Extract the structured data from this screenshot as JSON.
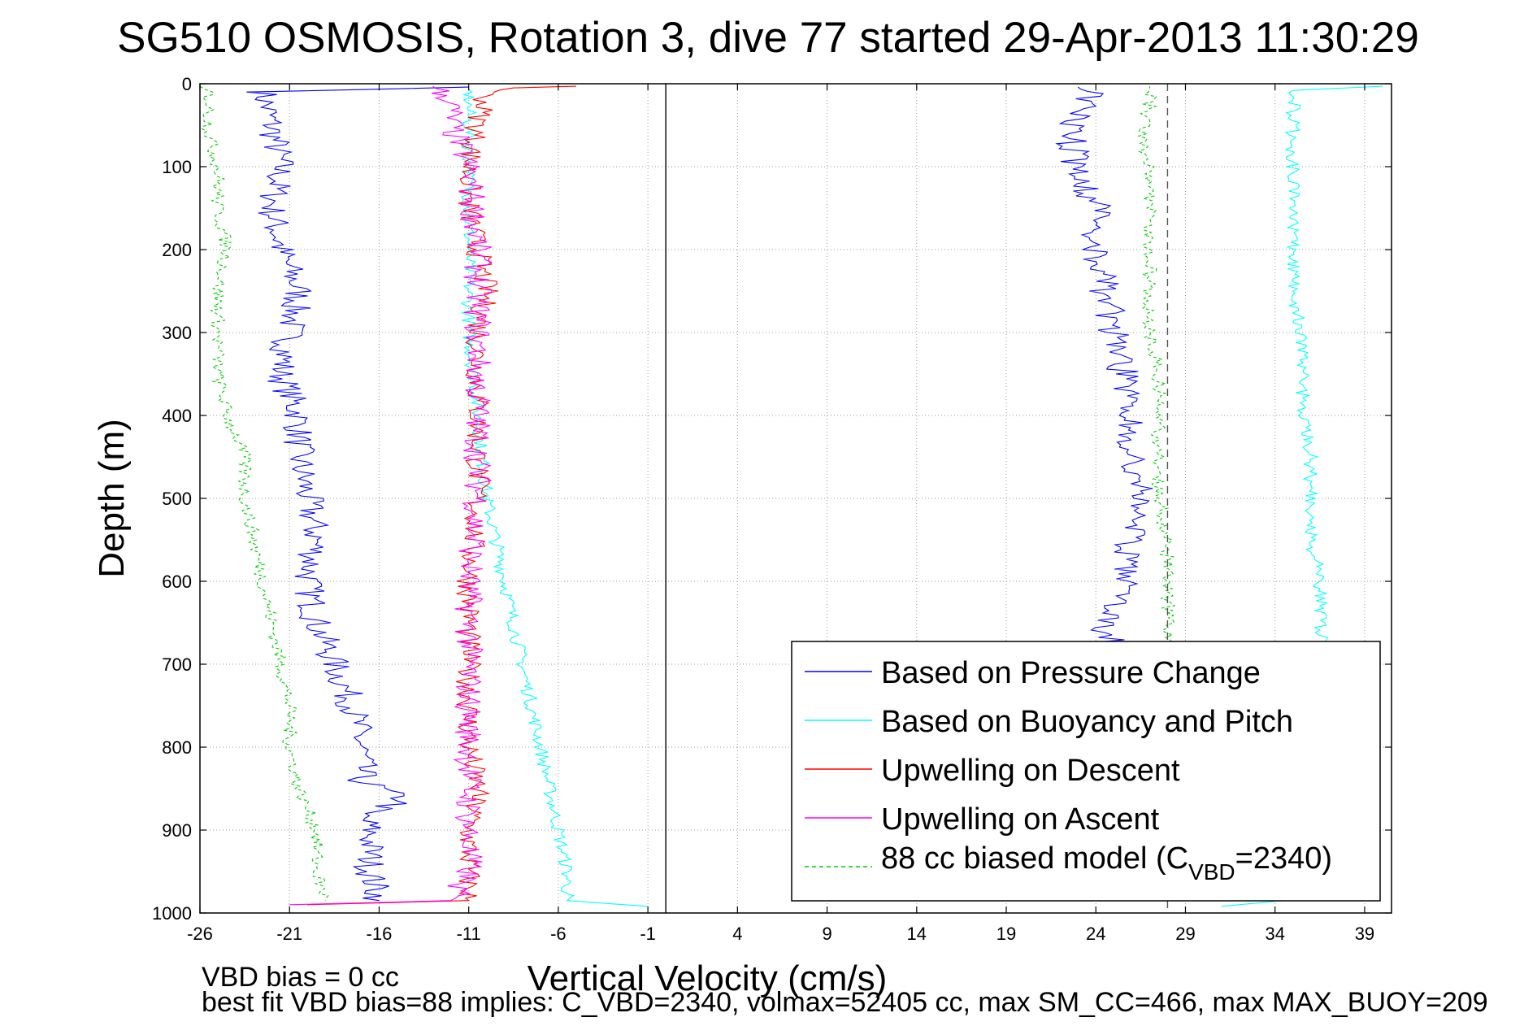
{
  "chart_data": {
    "type": "line",
    "title": "SG510 OSMOSIS, Rotation 3, dive 77 started 29-Apr-2013 11:30:29",
    "xlabel": "Vertical Velocity (cm/s)",
    "ylabel": "Depth (m)",
    "xlim": [
      -26,
      40.5
    ],
    "ylim": [
      1000,
      0
    ],
    "y_reversed": true,
    "grid": true,
    "x_ticks": [
      -26,
      -21,
      -16,
      -11,
      -6,
      -1,
      4,
      9,
      14,
      19,
      24,
      29,
      34,
      39
    ],
    "y_ticks": [
      0,
      100,
      200,
      300,
      400,
      500,
      600,
      700,
      800,
      900,
      1000
    ],
    "reference_lines": [
      {
        "x": 0,
        "style": "solid",
        "color": "#000000"
      },
      {
        "x": 28,
        "style": "dashed",
        "color": "#555555"
      }
    ],
    "legend_location": "bottom-right",
    "series": [
      {
        "name": "Based on Pressure Change",
        "color": "#0000ff",
        "style": "solid",
        "noise": 0.9,
        "down": [
          [
            4,
            -11
          ],
          [
            10,
            -22.5
          ],
          [
            50,
            -22
          ],
          [
            100,
            -21.5
          ],
          [
            150,
            -22
          ],
          [
            200,
            -21.5
          ],
          [
            250,
            -20.5
          ],
          [
            300,
            -21
          ],
          [
            350,
            -21.5
          ],
          [
            400,
            -20.5
          ],
          [
            450,
            -20.5
          ],
          [
            500,
            -20
          ],
          [
            550,
            -19.5
          ],
          [
            600,
            -20
          ],
          [
            650,
            -19.5
          ],
          [
            700,
            -18.5
          ],
          [
            750,
            -17.5
          ],
          [
            800,
            -17
          ],
          [
            840,
            -17
          ],
          [
            865,
            -14.5
          ],
          [
            880,
            -17
          ],
          [
            900,
            -16.5
          ],
          [
            950,
            -16.5
          ],
          [
            985,
            -16
          ]
        ],
        "up": [
          [
            985,
            25
          ],
          [
            950,
            25.5
          ],
          [
            900,
            25
          ],
          [
            850,
            25.5
          ],
          [
            800,
            25
          ],
          [
            750,
            25
          ],
          [
            700,
            25
          ],
          [
            650,
            24.5
          ],
          [
            600,
            25.5
          ],
          [
            550,
            26
          ],
          [
            500,
            26.5
          ],
          [
            450,
            26
          ],
          [
            400,
            26
          ],
          [
            350,
            25.5
          ],
          [
            300,
            25
          ],
          [
            250,
            24.5
          ],
          [
            200,
            24
          ],
          [
            150,
            24
          ],
          [
            100,
            23
          ],
          [
            60,
            22.5
          ],
          [
            30,
            23.5
          ],
          [
            12,
            23.5
          ],
          [
            4,
            23
          ]
        ]
      },
      {
        "name": "Based on Buoyancy and Pitch",
        "color": "#00ffff",
        "style": "solid",
        "noise": 0.4,
        "down": [
          [
            4,
            -11
          ],
          [
            50,
            -11
          ],
          [
            100,
            -11
          ],
          [
            200,
            -11
          ],
          [
            250,
            -11
          ],
          [
            300,
            -11
          ],
          [
            400,
            -10.5
          ],
          [
            500,
            -10
          ],
          [
            550,
            -9.5
          ],
          [
            600,
            -9
          ],
          [
            650,
            -8.5
          ],
          [
            700,
            -8
          ],
          [
            750,
            -7.5
          ],
          [
            800,
            -7
          ],
          [
            850,
            -6.5
          ],
          [
            900,
            -6
          ],
          [
            950,
            -5.5
          ],
          [
            985,
            -5.5
          ],
          [
            992,
            -1
          ]
        ],
        "up": [
          [
            992,
            31
          ],
          [
            980,
            37
          ],
          [
            950,
            37
          ],
          [
            900,
            37
          ],
          [
            800,
            37
          ],
          [
            700,
            37
          ],
          [
            650,
            36.5
          ],
          [
            600,
            36.5
          ],
          [
            550,
            36
          ],
          [
            500,
            36
          ],
          [
            450,
            36
          ],
          [
            400,
            35.5
          ],
          [
            300,
            35.5
          ],
          [
            250,
            35
          ],
          [
            200,
            35
          ],
          [
            150,
            35
          ],
          [
            100,
            35
          ],
          [
            50,
            35
          ],
          [
            20,
            35
          ],
          [
            8,
            35
          ],
          [
            3,
            40
          ]
        ]
      },
      {
        "name": "Upwelling on Descent",
        "color": "#ff0000",
        "style": "solid",
        "noise": 0.7,
        "down": [
          [
            3,
            -5
          ],
          [
            5,
            -8.5
          ],
          [
            10,
            -10
          ],
          [
            50,
            -10.5
          ],
          [
            100,
            -11
          ],
          [
            150,
            -11
          ],
          [
            200,
            -10.5
          ],
          [
            250,
            -10
          ],
          [
            300,
            -10.5
          ],
          [
            400,
            -10.5
          ],
          [
            500,
            -10.5
          ],
          [
            600,
            -11
          ],
          [
            700,
            -11
          ],
          [
            800,
            -11
          ],
          [
            850,
            -10.5
          ],
          [
            900,
            -11
          ],
          [
            950,
            -11
          ],
          [
            985,
            -11
          ],
          [
            990,
            -20
          ]
        ]
      },
      {
        "name": "Upwelling on Ascent",
        "color": "#ff00ff",
        "style": "solid",
        "noise": 0.8,
        "down": [
          [
            3,
            -13
          ],
          [
            20,
            -12
          ],
          [
            50,
            -12
          ],
          [
            100,
            -11
          ],
          [
            200,
            -10.5
          ],
          [
            300,
            -10.5
          ],
          [
            400,
            -10.5
          ],
          [
            500,
            -10.5
          ],
          [
            600,
            -11
          ],
          [
            700,
            -11
          ],
          [
            800,
            -11
          ],
          [
            900,
            -11
          ],
          [
            950,
            -11
          ],
          [
            985,
            -12
          ],
          [
            990,
            -21
          ]
        ]
      },
      {
        "name": "88 cc biased model (C",
        "color": "#00cc00",
        "style": "dashed",
        "noise": 0.4,
        "down": [
          [
            3,
            -26
          ],
          [
            10,
            -25.5
          ],
          [
            40,
            -25.5
          ],
          [
            60,
            -25.5
          ],
          [
            100,
            -25
          ],
          [
            150,
            -25
          ],
          [
            200,
            -24.5
          ],
          [
            250,
            -25
          ],
          [
            300,
            -25
          ],
          [
            350,
            -25
          ],
          [
            400,
            -24.5
          ],
          [
            450,
            -23.5
          ],
          [
            500,
            -23.5
          ],
          [
            550,
            -23
          ],
          [
            600,
            -22.5
          ],
          [
            650,
            -22
          ],
          [
            700,
            -21.5
          ],
          [
            750,
            -21
          ],
          [
            800,
            -21
          ],
          [
            850,
            -20.5
          ],
          [
            900,
            -19.5
          ],
          [
            950,
            -19.5
          ],
          [
            985,
            -19
          ]
        ],
        "up": [
          [
            985,
            28
          ],
          [
            950,
            28
          ],
          [
            900,
            28
          ],
          [
            800,
            28
          ],
          [
            700,
            28
          ],
          [
            650,
            28
          ],
          [
            600,
            28
          ],
          [
            550,
            28
          ],
          [
            500,
            27.5
          ],
          [
            450,
            27.5
          ],
          [
            400,
            27.5
          ],
          [
            350,
            27.5
          ],
          [
            300,
            27
          ],
          [
            250,
            27
          ],
          [
            200,
            27
          ],
          [
            150,
            27
          ],
          [
            100,
            27
          ],
          [
            60,
            26.5
          ],
          [
            30,
            27
          ],
          [
            10,
            27
          ],
          [
            3,
            27
          ]
        ]
      }
    ]
  },
  "legend": {
    "items": [
      {
        "label": "Based on Pressure Change",
        "color": "#0000ff",
        "dashed": false
      },
      {
        "label": "Based on Buoyancy and Pitch",
        "color": "#00ffff",
        "dashed": false
      },
      {
        "label": "Upwelling on Descent",
        "color": "#ff0000",
        "dashed": false
      },
      {
        "label": "Upwelling on Ascent",
        "color": "#ff00ff",
        "dashed": false
      },
      {
        "label": "88 cc biased model (C",
        "subscript": "VBD",
        "suffix": "=2340)",
        "color": "#00cc00",
        "dashed": true
      }
    ]
  },
  "footer": {
    "line1": "VBD bias = 0 cc",
    "line2": "best fit VBD bias=88 implies: C_VBD=2340, volmax=52405 cc, max SM_CC=466, max MAX_BUOY=209"
  }
}
